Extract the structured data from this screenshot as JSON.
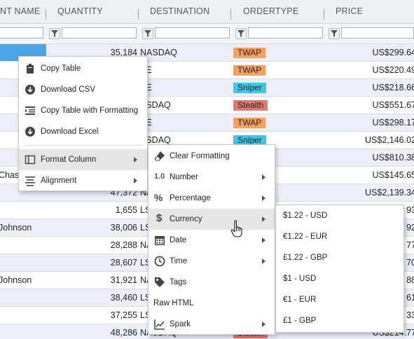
{
  "grid": {
    "columns": [
      {
        "label": "NT NAME"
      },
      {
        "label": "QUANTITY"
      },
      {
        "label": "DESTINATION"
      },
      {
        "label": "ORDERTYPE"
      },
      {
        "label": "PRICE"
      }
    ],
    "rows": [
      {
        "name": "",
        "qty": "35,184",
        "dest": "NASDAQ",
        "type": "TWAP",
        "price": "US$299.64"
      },
      {
        "name": "",
        "qty": "",
        "dest": "SE",
        "type": "TWAP",
        "price": "US$220.49"
      },
      {
        "name": "",
        "qty": "",
        "dest": "SE",
        "type": "Sniper",
        "price": "US$218.66"
      },
      {
        "name": "",
        "qty": "",
        "dest": "ASDAQ",
        "type": "Stealth",
        "price": "US$551.67"
      },
      {
        "name": "",
        "qty": "",
        "dest": "SE",
        "type": "TWAP",
        "price": "US$298.17"
      },
      {
        "name": "",
        "qty": "",
        "dest": "ASDAQ",
        "type": "Sniper",
        "price": "US$2,146.02"
      },
      {
        "name": "",
        "qty": "",
        "dest": "",
        "type": "",
        "price": "US$810.38"
      },
      {
        "name": "Chase",
        "qty": "",
        "dest": "",
        "type": "",
        "price": "US$145.65"
      },
      {
        "name": "",
        "qty": "47,372",
        "dest": "NA",
        "type": "",
        "price": "US$2,139.34"
      },
      {
        "name": "",
        "qty": "1,655",
        "dest": "LS",
        "type": "",
        "price": "93"
      },
      {
        "name": "Johnson",
        "qty": "38,006",
        "dest": "LS",
        "type": "",
        "price": "92"
      },
      {
        "name": "",
        "qty": "28,288",
        "dest": "NA",
        "type": "",
        "price": "77"
      },
      {
        "name": "",
        "qty": "28,607",
        "dest": "LS",
        "type": "",
        "price": "70"
      },
      {
        "name": "Johnson",
        "qty": "31,921",
        "dest": "NA",
        "type": "",
        "price": "88"
      },
      {
        "name": "",
        "qty": "38,460",
        "dest": "LS",
        "type": "",
        "price": "61"
      },
      {
        "name": "",
        "qty": "37,255",
        "dest": "LS",
        "type": "",
        "price": "33"
      },
      {
        "name": "",
        "qty": "48,286",
        "dest": "NASDAQ",
        "type": "Stealth",
        "price": "US$214.77"
      }
    ]
  },
  "orderTypeColors": {
    "TWAP": "#f6a05c",
    "Sniper": "#3ec7e6",
    "Stealth": "#e2796f"
  },
  "contextMenu": {
    "items": [
      {
        "label": "Copy Table",
        "icon": "clipboard-icon"
      },
      {
        "label": "Download CSV",
        "icon": "download-circle-icon"
      },
      {
        "label": "Copy Table with Formatting",
        "icon": "copy-formatted-icon"
      },
      {
        "label": "Download Excel",
        "icon": "download-circle-icon"
      },
      {
        "label": "Format Column",
        "icon": "columns-icon"
      },
      {
        "label": "Alignment",
        "icon": "align-icon"
      }
    ]
  },
  "formatMenu": {
    "items": [
      {
        "label": "Clear Formatting",
        "icon": "eraser-icon"
      },
      {
        "label": "Number",
        "icon": "number-icon",
        "iconText": "1.0"
      },
      {
        "label": "Percentage",
        "icon": "percent-icon",
        "iconText": "%"
      },
      {
        "label": "Currency",
        "icon": "dollar-icon",
        "iconText": "$"
      },
      {
        "label": "Date",
        "icon": "calendar-icon"
      },
      {
        "label": "Time",
        "icon": "clock-icon"
      },
      {
        "label": "Tags",
        "icon": "tag-icon"
      },
      {
        "label": "Raw HTML",
        "icon": ""
      },
      {
        "label": "Spark",
        "icon": "sparkline-icon"
      }
    ]
  },
  "currencyMenu": {
    "items": [
      {
        "label": "$1.22 - USD"
      },
      {
        "label": "€1.22 - EUR"
      },
      {
        "label": "£1.22 - GBP"
      },
      {
        "label": "$1 - USD"
      },
      {
        "label": "€1 - EUR"
      },
      {
        "label": "£1 - GBP"
      }
    ]
  }
}
